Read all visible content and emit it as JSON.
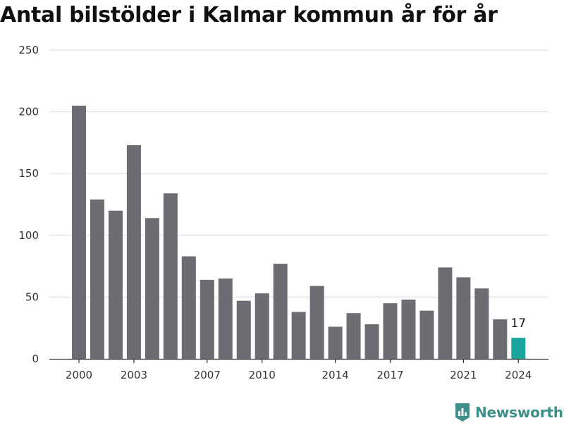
{
  "page": {
    "title": "Antal bilstölder i Kalmar kommun år för år"
  },
  "brand": {
    "name": "Newsworthy",
    "icon": "newsworthy-logo-icon",
    "color": "#3f8f8a"
  },
  "colors": {
    "bar": "#6d6c72",
    "highlight": "#1aa59c",
    "grid": "#dddddd",
    "axis": "#333333"
  },
  "chart_data": {
    "type": "bar",
    "title": "Antal bilstölder i Kalmar kommun år för år",
    "xlabel": "",
    "ylabel": "",
    "ylim": [
      0,
      250
    ],
    "yticks": [
      0,
      50,
      100,
      150,
      200,
      250
    ],
    "grid": true,
    "legend": "none",
    "categories": [
      "2000",
      "2001",
      "2002",
      "2003",
      "2004",
      "2005",
      "2006",
      "2007",
      "2008",
      "2009",
      "2010",
      "2011",
      "2012",
      "2013",
      "2014",
      "2015",
      "2016",
      "2017",
      "2018",
      "2019",
      "2020",
      "2021",
      "2022",
      "2023",
      "2024"
    ],
    "xtick_labels": [
      "2000",
      "2003",
      "2007",
      "2010",
      "2014",
      "2017",
      "2021",
      "2024"
    ],
    "values": [
      205,
      129,
      120,
      173,
      114,
      134,
      83,
      64,
      65,
      47,
      53,
      77,
      38,
      59,
      26,
      37,
      28,
      45,
      48,
      39,
      74,
      66,
      57,
      32,
      17
    ],
    "highlight_category": "2024",
    "annotations": [
      {
        "category": "2024",
        "text": "17"
      }
    ]
  }
}
